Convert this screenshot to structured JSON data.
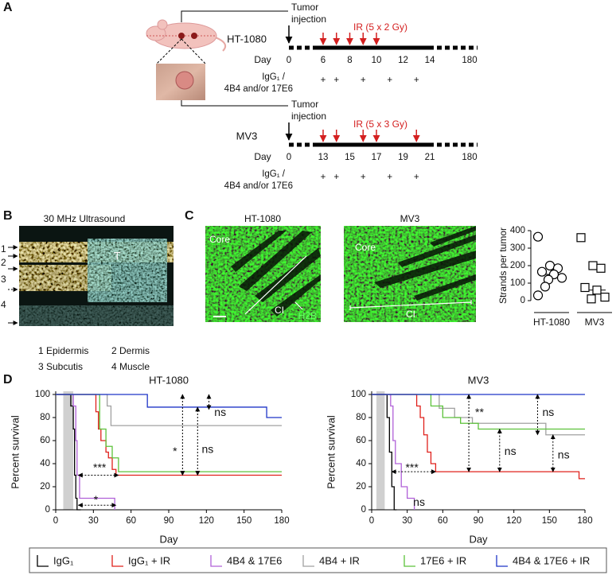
{
  "panel_labels": {
    "a": "A",
    "b": "B",
    "c": "C",
    "d": "D"
  },
  "panel_a": {
    "timelines": [
      {
        "model": "HT-1080",
        "injection": [
          "Tumor",
          "injection"
        ],
        "ir_label": "IR (5 x 2 Gy)",
        "day_label": "Day",
        "treatment_label": [
          "IgG₁ /",
          "4B4 and/or 17E6"
        ],
        "day_ticks": [
          0,
          6,
          8,
          10,
          12,
          14,
          180
        ],
        "ir_days": [
          6,
          7,
          8,
          9,
          10
        ],
        "treatment_days": [
          6,
          7,
          9,
          11,
          13
        ],
        "treatment_mark": "+"
      },
      {
        "model": "MV3",
        "injection": [
          "Tumor",
          "injection"
        ],
        "ir_label": "IR (5 x 3 Gy)",
        "day_label": "Day",
        "treatment_label": [
          "IgG₁ /",
          "4B4 and/or 17E6"
        ],
        "day_ticks": [
          0,
          13,
          15,
          17,
          19,
          21,
          180
        ],
        "ir_days": [
          13,
          14,
          16,
          17,
          20
        ],
        "treatment_days": [
          13,
          14,
          16,
          18,
          20
        ],
        "treatment_mark": "+"
      }
    ]
  },
  "panel_b": {
    "title": "30 MHz Ultrasound",
    "tumor_label": "T",
    "layer_markers": [
      "1",
      "2",
      "3",
      "4"
    ],
    "legend": [
      "1 Epidermis",
      "2 Dermis",
      "3 Subcutis",
      "4 Muscle"
    ]
  },
  "panel_c": {
    "images": [
      {
        "title": "HT-1080",
        "core_label": "Core",
        "invasion_label": "CI",
        "stain_label": "H2B"
      },
      {
        "title": "MV3",
        "core_label": "Core",
        "invasion_label": "CI"
      }
    ]
  },
  "chart_data": [
    {
      "type": "strip",
      "ylabel": "Strands per tumor",
      "categories": [
        "HT-1080",
        "MV3"
      ],
      "ylim": [
        0,
        400
      ],
      "yticks": [
        0,
        100,
        200,
        300,
        400
      ],
      "series": [
        {
          "marker": "circle",
          "values": [
            365,
            200,
            185,
            165,
            150,
            130,
            120,
            80,
            30
          ],
          "median": 150
        },
        {
          "marker": "square",
          "values": [
            360,
            200,
            185,
            75,
            60,
            20,
            10
          ],
          "median": 60
        }
      ]
    },
    {
      "type": "survival",
      "title": "HT-1080",
      "xlabel": "Day",
      "ylabel": "Percent survival",
      "xlim": [
        0,
        180
      ],
      "xticks": [
        0,
        30,
        60,
        90,
        120,
        150,
        180
      ],
      "ylim": [
        0,
        100
      ],
      "yticks": [
        0,
        20,
        40,
        60,
        80,
        100
      ],
      "ir_window": [
        6,
        14
      ],
      "series": [
        {
          "name": "IgG₁",
          "color": "#000000",
          "x": [
            0,
            12,
            12,
            14,
            14,
            15,
            15,
            16,
            16,
            17,
            17,
            20
          ],
          "values": [
            100,
            100,
            90,
            90,
            70,
            70,
            30,
            30,
            10,
            10,
            0,
            0
          ]
        },
        {
          "name": "IgG₁ + IR",
          "color": "#e0201b",
          "x": [
            0,
            32,
            32,
            34,
            34,
            36,
            36,
            40,
            40,
            42,
            42,
            45,
            45,
            48,
            48,
            180
          ],
          "values": [
            100,
            100,
            85,
            85,
            70,
            70,
            60,
            60,
            50,
            50,
            45,
            45,
            35,
            35,
            30,
            30
          ]
        },
        {
          "name": "4B4 & 17E6",
          "color": "#b060d8",
          "x": [
            0,
            14,
            14,
            16,
            16,
            17,
            17,
            19,
            19,
            47,
            47
          ],
          "values": [
            100,
            100,
            90,
            90,
            60,
            60,
            30,
            30,
            10,
            10,
            0
          ]
        },
        {
          "name": "4B4 + IR",
          "color": "#a0a0a0",
          "x": [
            0,
            41,
            41,
            44,
            44,
            180
          ],
          "values": [
            100,
            100,
            90,
            90,
            73,
            73
          ]
        },
        {
          "name": "17E6 + IR",
          "color": "#5cc23a",
          "x": [
            0,
            35,
            35,
            40,
            40,
            45,
            45,
            50,
            50,
            180
          ],
          "values": [
            100,
            100,
            70,
            70,
            55,
            55,
            45,
            45,
            33,
            33
          ]
        },
        {
          "name": "4B4 & 17E6 + IR",
          "color": "#1f35c8",
          "x": [
            0,
            73,
            73,
            168,
            168,
            180
          ],
          "values": [
            100,
            100,
            89,
            89,
            80,
            80
          ]
        }
      ],
      "annotations": [
        "***",
        "*",
        "*",
        "ns",
        "ns"
      ]
    },
    {
      "type": "survival",
      "title": "MV3",
      "xlabel": "Day",
      "ylabel": "Percent survival",
      "xlim": [
        0,
        180
      ],
      "xticks": [
        0,
        30,
        60,
        90,
        120,
        150,
        180
      ],
      "ylim": [
        0,
        100
      ],
      "yticks": [
        0,
        20,
        40,
        60,
        80,
        100
      ],
      "ir_window": [
        4,
        11
      ],
      "series": [
        {
          "color": "#000000",
          "x": [
            0,
            13,
            13,
            15,
            15,
            17,
            17,
            19,
            19,
            21
          ],
          "values": [
            100,
            100,
            80,
            80,
            50,
            50,
            20,
            20,
            0,
            0
          ]
        },
        {
          "color": "#e0201b",
          "x": [
            0,
            38,
            38,
            41,
            41,
            44,
            44,
            47,
            47,
            50,
            50,
            54,
            54,
            175,
            175,
            180
          ],
          "values": [
            100,
            100,
            90,
            90,
            80,
            80,
            65,
            65,
            50,
            50,
            40,
            40,
            33,
            33,
            27,
            27
          ]
        },
        {
          "color": "#b060d8",
          "x": [
            0,
            16,
            16,
            18,
            18,
            20,
            20,
            25,
            25,
            30,
            30,
            36,
            36
          ],
          "values": [
            100,
            100,
            90,
            90,
            60,
            60,
            40,
            40,
            20,
            20,
            10,
            10,
            0
          ]
        },
        {
          "color": "#a0a0a0",
          "x": [
            0,
            57,
            57,
            70,
            70,
            85,
            85,
            147,
            147,
            180
          ],
          "values": [
            100,
            100,
            88,
            88,
            80,
            80,
            75,
            75,
            65,
            65
          ]
        },
        {
          "color": "#5cc23a",
          "x": [
            0,
            50,
            50,
            60,
            60,
            75,
            75,
            90,
            90,
            180
          ],
          "values": [
            100,
            100,
            90,
            90,
            80,
            80,
            75,
            75,
            70,
            70
          ]
        },
        {
          "color": "#1f35c8",
          "x": [
            0,
            180
          ],
          "values": [
            100,
            100
          ]
        }
      ],
      "annotations": [
        "***",
        "**",
        "ns",
        "ns",
        "ns",
        "ns"
      ]
    }
  ]
}
